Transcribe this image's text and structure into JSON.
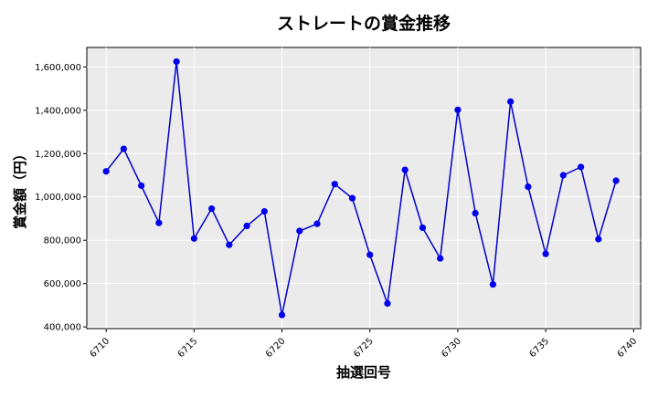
{
  "chart_data": {
    "type": "line",
    "title": "ストレートの賞金推移",
    "xlabel": "抽選回号",
    "ylabel": "賞金額（円）",
    "xlim": [
      6708.9,
      6740.4
    ],
    "ylim": [
      392000,
      1690000
    ],
    "xticks": [
      6710,
      6715,
      6720,
      6725,
      6730,
      6735,
      6740
    ],
    "yticks": [
      400000,
      600000,
      800000,
      1000000,
      1200000,
      1400000,
      1600000
    ],
    "ytick_labels": [
      "400,000",
      "600,000",
      "800,000",
      "1,000,000",
      "1,200,000",
      "1,400,000",
      "1,600,000"
    ],
    "grid": true,
    "series": [
      {
        "color": "#0000cc",
        "marker_color": "#0000ee",
        "x": [
          6710,
          6711,
          6712,
          6713,
          6714,
          6715,
          6716,
          6717,
          6718,
          6719,
          6720,
          6721,
          6722,
          6723,
          6724,
          6725,
          6726,
          6727,
          6728,
          6729,
          6730,
          6731,
          6732,
          6733,
          6734,
          6735,
          6736,
          6737,
          6738,
          6739
        ],
        "values": [
          1118000,
          1222000,
          1052000,
          880000,
          1625000,
          808000,
          946000,
          779000,
          866000,
          933000,
          455000,
          843000,
          876000,
          1059000,
          994000,
          733000,
          508000,
          1125000,
          858000,
          716000,
          1402000,
          925000,
          596000,
          1440000,
          1047000,
          737000,
          1100000,
          1138000,
          805000,
          1075000
        ]
      }
    ]
  }
}
